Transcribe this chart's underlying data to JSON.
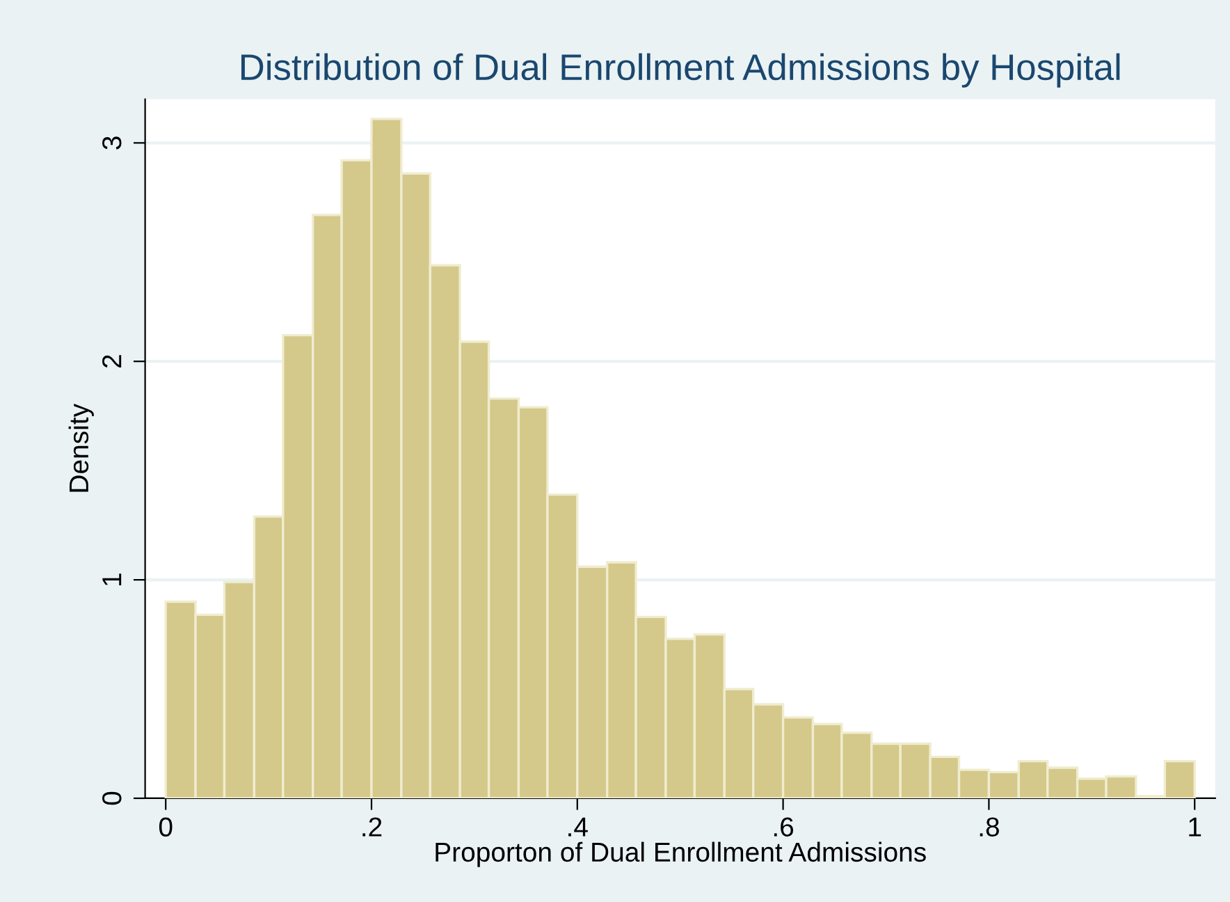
{
  "chart_data": {
    "type": "histogram",
    "title": "Distribution of Dual Enrollment Admissions by Hospital",
    "xlabel": "Proporton of Dual Enrollment Admissions",
    "ylabel": "Density",
    "bins": [
      0,
      0.029,
      0.057,
      0.086,
      0.114,
      0.143,
      0.171,
      0.2,
      0.229,
      0.257,
      0.286,
      0.314,
      0.343,
      0.371,
      0.4,
      0.429,
      0.457,
      0.486,
      0.514,
      0.543,
      0.571,
      0.6,
      0.629,
      0.657,
      0.686,
      0.714,
      0.743,
      0.771,
      0.8,
      0.829,
      0.857,
      0.886,
      0.914,
      0.943,
      0.971,
      1
    ],
    "values": [
      0.9,
      0.84,
      0.99,
      1.29,
      2.12,
      2.67,
      2.92,
      3.11,
      2.86,
      2.44,
      2.09,
      1.83,
      1.79,
      1.39,
      1.06,
      1.08,
      0.83,
      0.73,
      0.75,
      0.5,
      0.43,
      0.37,
      0.34,
      0.3,
      0.25,
      0.25,
      0.19,
      0.13,
      0.12,
      0.17,
      0.14,
      0.09,
      0.1,
      0.01,
      0.17
    ],
    "color": "#d4c98a",
    "xlim": [
      -0.02,
      1.02
    ],
    "ylim": [
      0,
      3.2
    ],
    "xticks": [
      0,
      {
        "value": 0.2,
        "label": ".2"
      },
      {
        "value": 0.4,
        "label": ".4"
      },
      {
        "value": 0.6,
        "label": ".6"
      },
      {
        "value": 0.8,
        "label": ".8"
      },
      1
    ],
    "yticks": [
      0,
      1,
      2,
      3
    ],
    "grid": "y"
  }
}
